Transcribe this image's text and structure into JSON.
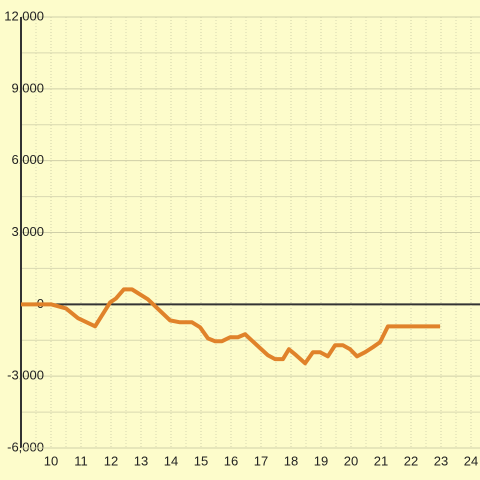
{
  "chart_data": {
    "type": "line",
    "x": [
      9,
      10,
      10.5,
      10.9,
      11.47,
      11.97,
      12.17,
      12.43,
      12.7,
      13.23,
      13.97,
      14.3,
      14.7,
      14.97,
      15.23,
      15.47,
      15.7,
      15.97,
      16.23,
      16.47,
      16.97,
      17.23,
      17.47,
      17.73,
      17.93,
      18.17,
      18.47,
      18.73,
      18.97,
      19.23,
      19.47,
      19.73,
      19.97,
      20.2,
      20.47,
      20.73,
      20.97,
      21.23,
      22.97
    ],
    "series": [
      {
        "color": "#e0822a",
        "values": [
          0,
          0,
          -170,
          -580,
          -920,
          80,
          250,
          625,
          625,
          210,
          -670,
          -750,
          -750,
          -960,
          -1420,
          -1540,
          -1540,
          -1375,
          -1375,
          -1250,
          -1830,
          -2125,
          -2290,
          -2290,
          -1875,
          -2125,
          -2460,
          -2000,
          -2000,
          -2170,
          -1710,
          -1710,
          -1875,
          -2170,
          -2000,
          -1790,
          -1580,
          -920,
          -920
        ]
      }
    ],
    "xlim": [
      9,
      24.3
    ],
    "xticks": [
      10,
      11,
      12,
      13,
      14,
      15,
      16,
      17,
      18,
      19,
      20,
      21,
      22,
      23,
      24
    ],
    "ylim": [
      -6000,
      12000
    ],
    "yticks": [
      {
        "value": -6000,
        "label": "-6,000"
      },
      {
        "value": -3000,
        "label": "-3,000"
      },
      0,
      {
        "value": 3000,
        "label": "3,000"
      },
      {
        "value": 6000,
        "label": "6,000"
      },
      {
        "value": 9000,
        "label": "9,000"
      },
      {
        "value": 12000,
        "label": "12,000"
      }
    ],
    "grid": true
  }
}
